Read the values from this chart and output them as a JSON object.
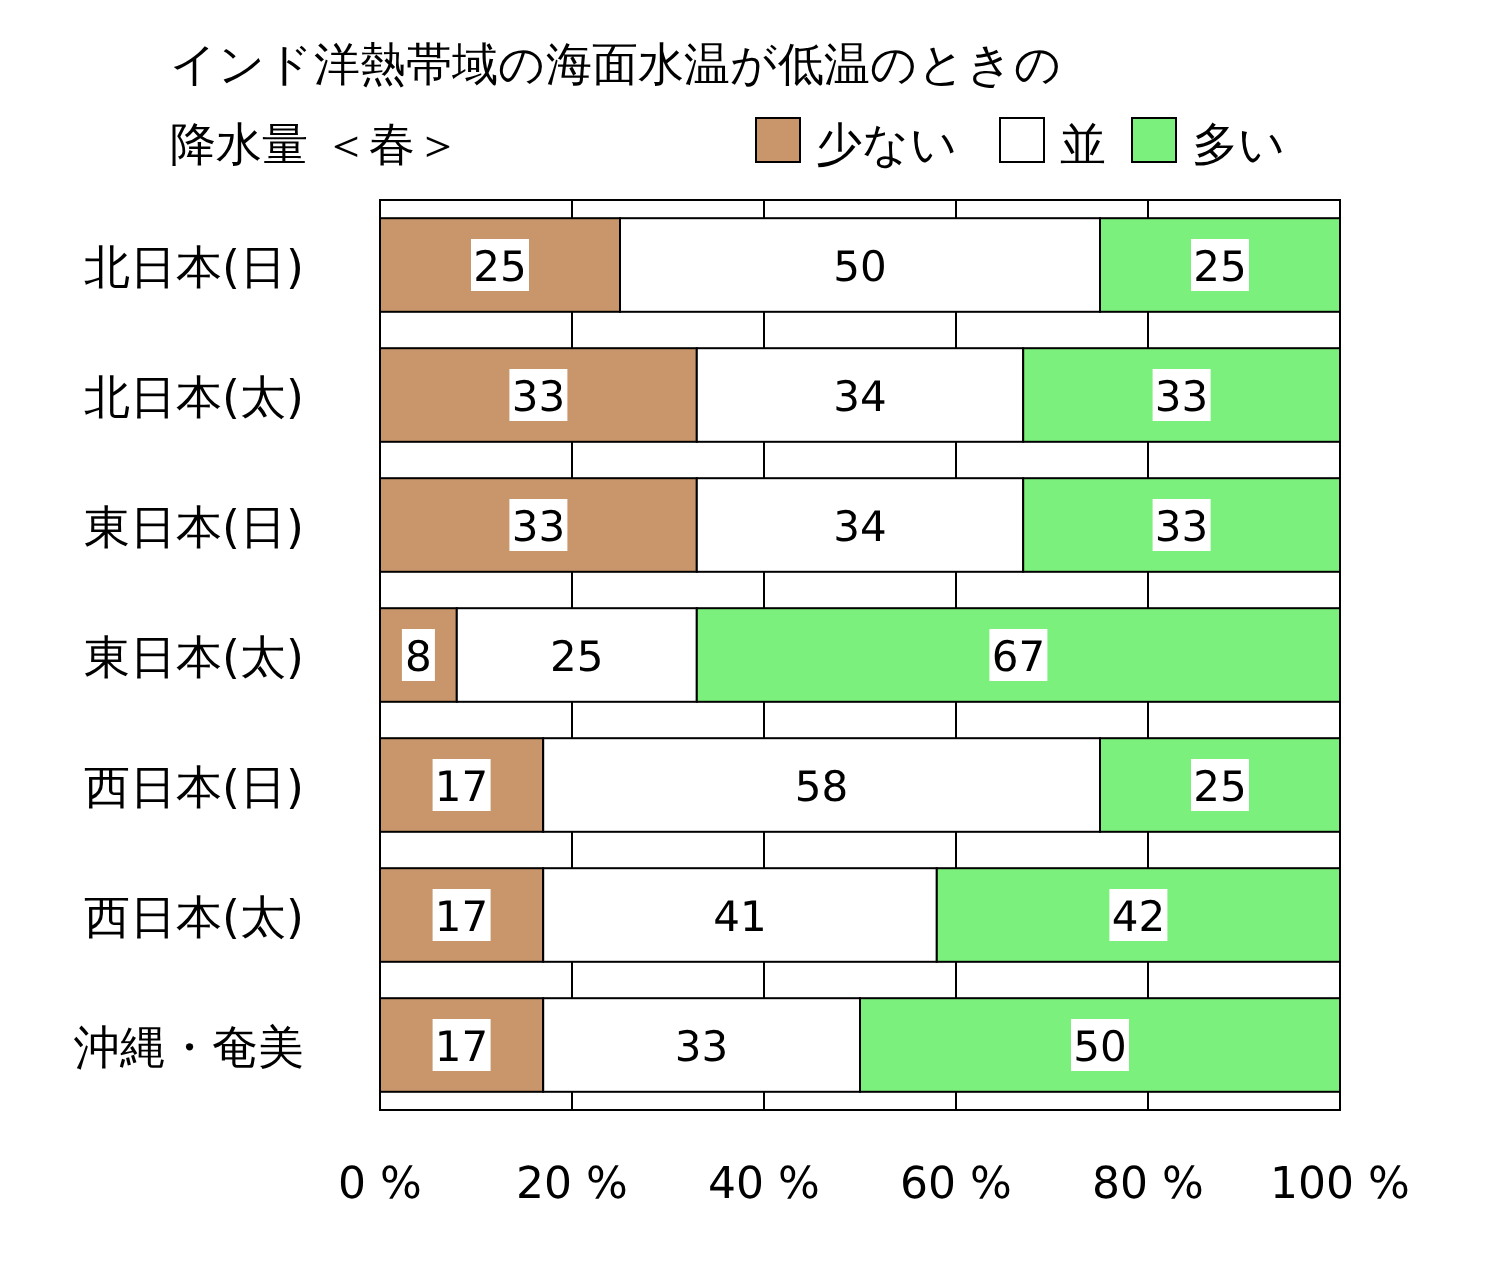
{
  "chart_data": {
    "type": "bar",
    "orientation": "horizontal",
    "stacked": true,
    "title": "インド洋熱帯域の海面水温が低温のときの",
    "subtitle": "降水量 ＜春＞",
    "categories": [
      "北日本(日)",
      "北日本(太)",
      "東日本(日)",
      "東日本(太)",
      "西日本(日)",
      "西日本(太)",
      "沖縄・奄美"
    ],
    "series": [
      {
        "name": "少ない",
        "color": "#c8966a",
        "values": [
          25,
          33,
          33,
          8,
          17,
          17,
          17
        ]
      },
      {
        "name": "並",
        "color": "#ffffff",
        "values": [
          50,
          34,
          34,
          25,
          58,
          41,
          33
        ]
      },
      {
        "name": "多い",
        "color": "#7cf07c",
        "values": [
          25,
          33,
          33,
          67,
          25,
          42,
          50
        ]
      }
    ],
    "xlim": [
      0,
      100
    ],
    "xticks": [
      {
        "value": 0,
        "label": "0 %"
      },
      {
        "value": 20,
        "label": "20 %"
      },
      {
        "value": 40,
        "label": "40 %"
      },
      {
        "value": 60,
        "label": "60 %"
      },
      {
        "value": 80,
        "label": "80 %"
      },
      {
        "value": 100,
        "label": "100 %"
      }
    ],
    "grid": "x",
    "legend": "top right",
    "data_labels": true
  }
}
